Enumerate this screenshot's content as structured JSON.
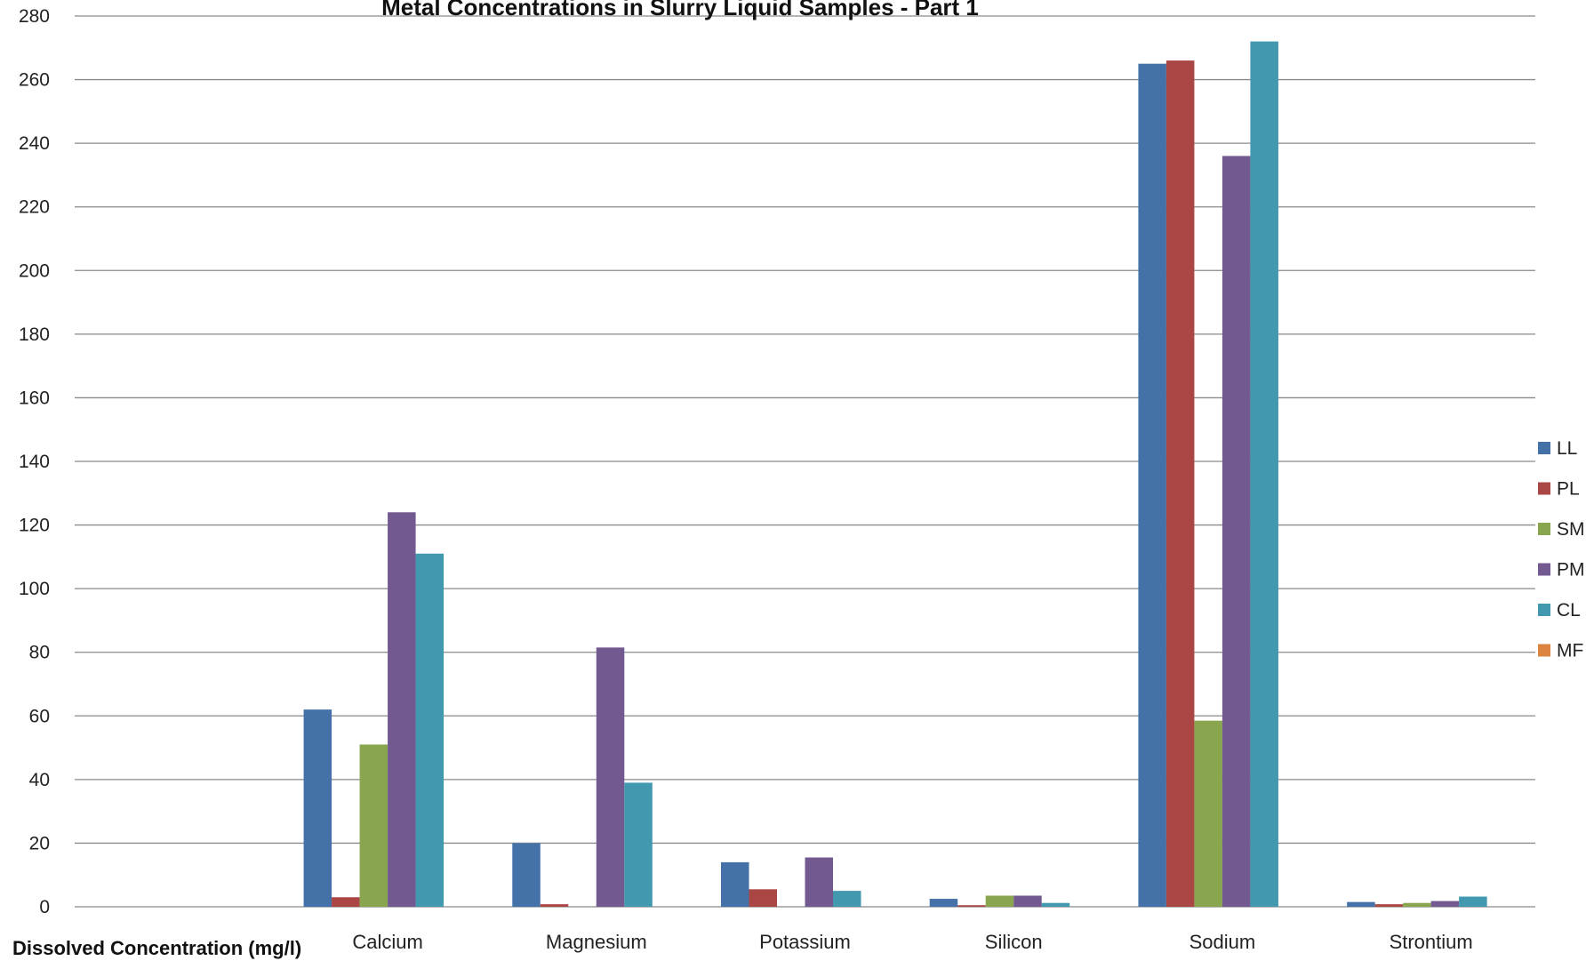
{
  "chart_data": {
    "type": "bar",
    "title": "Metal Concentrations in Slurry Liquid Samples  - Part 1",
    "ylabel": "Dissolved Concentration (mg/l)",
    "xlabel": "",
    "ylim": [
      0,
      280
    ],
    "yticks": [
      0,
      20,
      40,
      60,
      80,
      100,
      120,
      140,
      160,
      180,
      200,
      220,
      240,
      260,
      280
    ],
    "grid": true,
    "legend_position": "right",
    "categories": [
      "",
      "Calcium",
      "Magnesium",
      "Potassium",
      "Silicon",
      "Sodium",
      "Strontium"
    ],
    "series": [
      {
        "name": "LL",
        "color": "#4472A8",
        "values": [
          null,
          62,
          20,
          14,
          2.5,
          265,
          1.5
        ]
      },
      {
        "name": "PL",
        "color": "#AA4644",
        "values": [
          null,
          3,
          0.8,
          5.5,
          0.5,
          266,
          0.8
        ]
      },
      {
        "name": "SM",
        "color": "#89A54E",
        "values": [
          null,
          51,
          0,
          0,
          3.5,
          58.5,
          1.2
        ]
      },
      {
        "name": "PM",
        "color": "#725990",
        "values": [
          null,
          124,
          81.5,
          15.5,
          3.5,
          236,
          1.8
        ]
      },
      {
        "name": "CL",
        "color": "#4198AF",
        "values": [
          null,
          111,
          39,
          5,
          1.2,
          272,
          3.2
        ]
      },
      {
        "name": "MF",
        "color": "#DB843D",
        "values": [
          null,
          0,
          0,
          0,
          0,
          0,
          0
        ]
      }
    ]
  }
}
